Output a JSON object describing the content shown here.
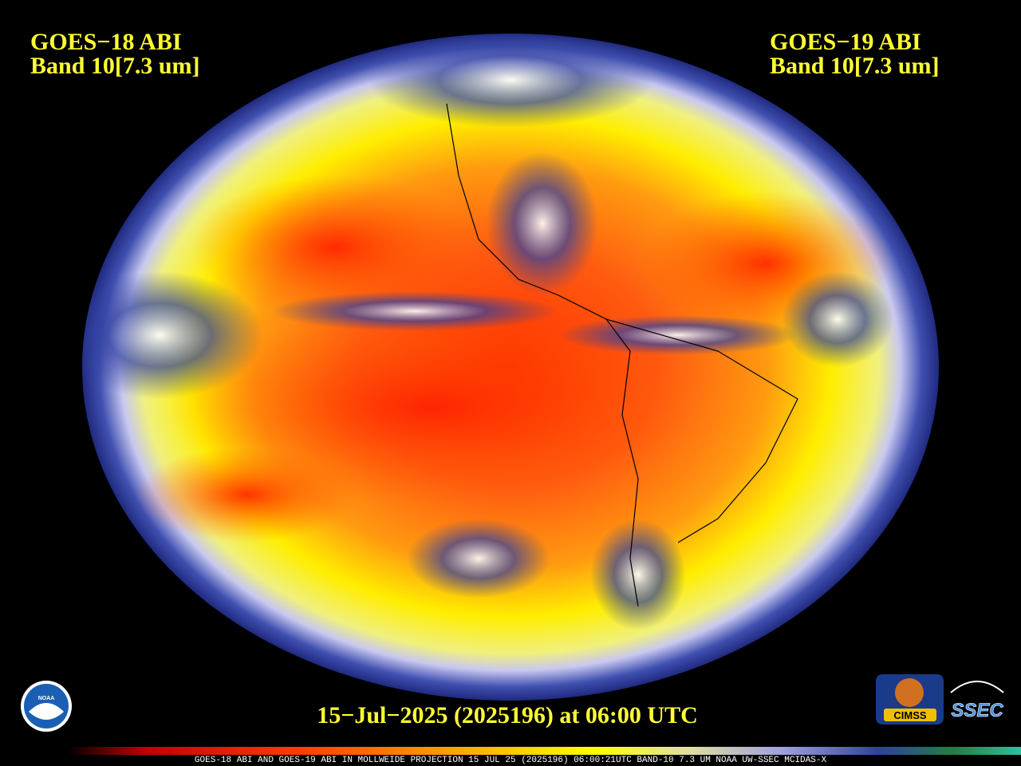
{
  "header": {
    "left": {
      "line1": "GOES−18 ABI",
      "line2": "Band 10[7.3 um]"
    },
    "right": {
      "line1": "GOES−19 ABI",
      "line2": "Band 10[7.3 um]"
    }
  },
  "timestamp": "15−Jul−2025 (2025196) at 06:00 UTC",
  "footer": "GOES-18 ABI AND GOES-19 ABI IN MOLLWEIDE PROJECTION 15 JUL 25 (2025196) 06:00:21UTC BAND-10 7.3 UM NOAA UW-SSEC MCIDAS-X",
  "logos": {
    "noaa": "NOAA",
    "cimss": "CIMSS",
    "ssec": "SSEC"
  }
}
